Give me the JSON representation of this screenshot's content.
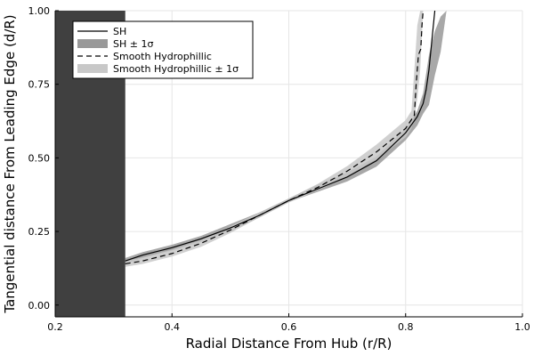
{
  "chart_data": {
    "type": "line",
    "title": "",
    "xlabel": "Radial Distance From Hub (r/R)",
    "ylabel": "Tangential distance From Leading Edge (d/R)",
    "xlim": [
      0.2,
      1.0
    ],
    "ylim": [
      -0.04,
      1.0
    ],
    "xticks": [
      0.2,
      0.4,
      0.6,
      0.8,
      1.0
    ],
    "xtick_labels": [
      "0.2",
      "0.4",
      "0.6",
      "0.8",
      "1.0"
    ],
    "yticks": [
      0.0,
      0.25,
      0.5,
      0.75,
      1.0
    ],
    "ytick_labels": [
      "0.00",
      "0.25",
      "0.50",
      "0.75",
      "1.00"
    ],
    "grid": true,
    "legend_position": "top-left",
    "shaded_region": {
      "x0": 0.2,
      "x1": 0.32,
      "color": "#404040"
    },
    "series": [
      {
        "name": "SH",
        "style": "solid",
        "color": "#000000",
        "x": [
          0.32,
          0.35,
          0.4,
          0.45,
          0.5,
          0.55,
          0.6,
          0.65,
          0.7,
          0.75,
          0.8,
          0.82,
          0.83,
          0.835,
          0.84,
          0.845,
          0.85
        ],
        "y": [
          0.15,
          0.17,
          0.195,
          0.225,
          0.262,
          0.305,
          0.355,
          0.395,
          0.435,
          0.49,
          0.585,
          0.64,
          0.685,
          0.73,
          0.8,
          0.9,
          1.0
        ]
      },
      {
        "name": "SH ± 1σ",
        "style": "band",
        "color": "#999999",
        "x": [
          0.32,
          0.35,
          0.4,
          0.45,
          0.5,
          0.55,
          0.6,
          0.65,
          0.7,
          0.75,
          0.8,
          0.82,
          0.83,
          0.84,
          0.85,
          0.86,
          0.87
        ],
        "lower": [
          0.14,
          0.16,
          0.185,
          0.215,
          0.25,
          0.298,
          0.35,
          0.385,
          0.42,
          0.47,
          0.56,
          0.61,
          0.65,
          0.68,
          0.78,
          0.86,
          1.0
        ],
        "upper": [
          0.16,
          0.18,
          0.205,
          0.235,
          0.275,
          0.315,
          0.362,
          0.41,
          0.45,
          0.505,
          0.6,
          0.66,
          0.72,
          0.85,
          0.93,
          0.98,
          1.0
        ]
      },
      {
        "name": "Smooth Hydrophillic",
        "style": "dashed",
        "color": "#000000",
        "x": [
          0.32,
          0.35,
          0.4,
          0.45,
          0.5,
          0.55,
          0.6,
          0.65,
          0.7,
          0.75,
          0.8,
          0.815,
          0.818,
          0.822,
          0.826,
          0.828,
          0.83
        ],
        "y": [
          0.14,
          0.15,
          0.175,
          0.21,
          0.255,
          0.305,
          0.355,
          0.4,
          0.455,
          0.52,
          0.6,
          0.645,
          0.75,
          0.85,
          0.87,
          0.95,
          1.0
        ]
      },
      {
        "name": "Smooth Hydrophillic ± 1σ",
        "style": "band",
        "color": "#c8c8c8",
        "x": [
          0.32,
          0.35,
          0.4,
          0.45,
          0.5,
          0.55,
          0.6,
          0.65,
          0.7,
          0.75,
          0.8,
          0.81,
          0.815,
          0.82,
          0.825,
          0.83
        ],
        "lower": [
          0.13,
          0.14,
          0.165,
          0.198,
          0.245,
          0.298,
          0.348,
          0.39,
          0.438,
          0.495,
          0.57,
          0.6,
          0.64,
          0.7,
          0.8,
          1.0
        ],
        "upper": [
          0.15,
          0.162,
          0.188,
          0.222,
          0.268,
          0.314,
          0.362,
          0.412,
          0.472,
          0.545,
          0.628,
          0.66,
          0.8,
          0.95,
          1.0,
          1.0
        ]
      }
    ]
  }
}
